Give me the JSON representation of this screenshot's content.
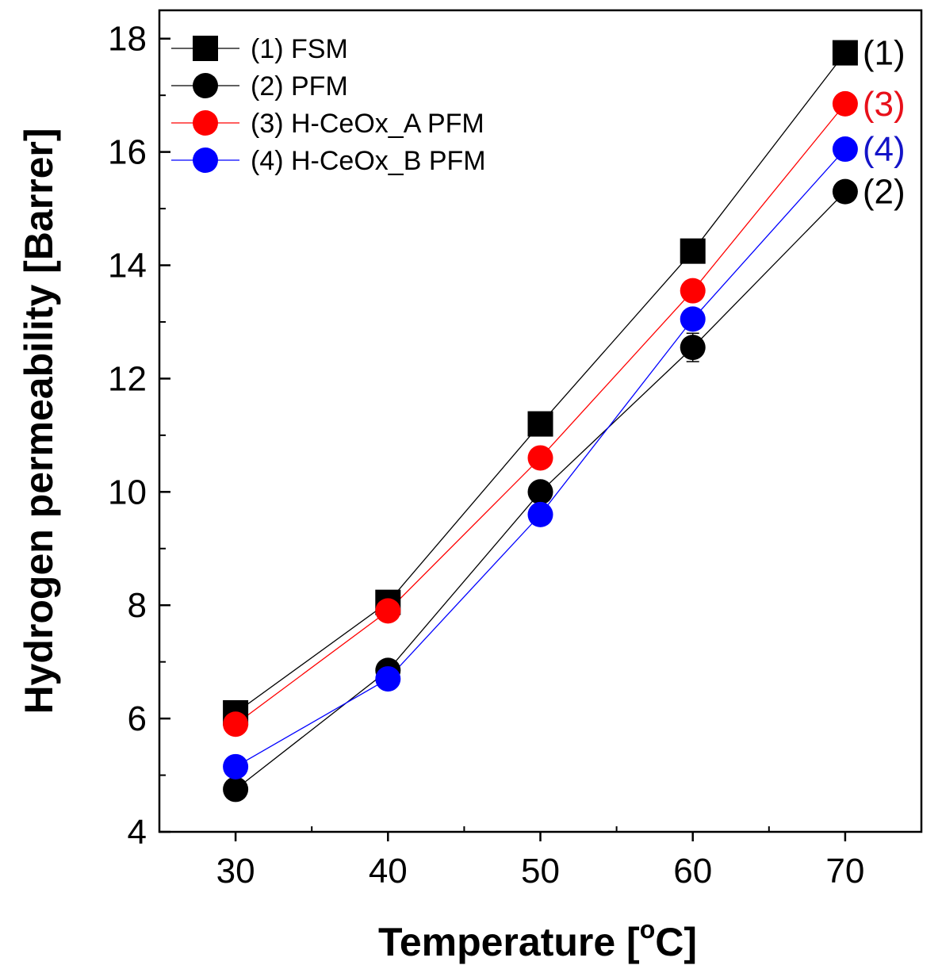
{
  "chart_data": {
    "type": "line",
    "xlabel": "Temperature [",
    "xlabel_sup": "o",
    "xlabel_unit": "C]",
    "ylabel": "Hydrogen permeability [Barrer]",
    "xlim": [
      25,
      75
    ],
    "ylim": [
      4,
      18.5
    ],
    "x": [
      30,
      40,
      50,
      60,
      70
    ],
    "xticks": [
      30,
      40,
      50,
      60,
      70
    ],
    "xtick_labels": [
      "30",
      "40",
      "50",
      "60",
      "70"
    ],
    "yticks": [
      4,
      6,
      8,
      10,
      12,
      14,
      16,
      18
    ],
    "ytick_labels": [
      "4",
      "6",
      "8",
      "10",
      "12",
      "14",
      "16",
      "18"
    ],
    "legend_position": "top-left",
    "grid": false,
    "series": [
      {
        "name": "(1) FSM",
        "end_label": "(1)",
        "marker": "square",
        "color": "#000000",
        "label_color": "#000000",
        "values": [
          6.1,
          8.05,
          11.2,
          14.25,
          17.75
        ],
        "errors": [
          0.05,
          0.05,
          0.05,
          0.05,
          0.05
        ]
      },
      {
        "name": "(2) PFM",
        "end_label": "(2)",
        "marker": "circle",
        "color": "#000000",
        "label_color": "#000000",
        "values": [
          4.75,
          6.85,
          10.0,
          12.55,
          15.3
        ],
        "errors": [
          0.05,
          0.05,
          0.05,
          0.25,
          0.05
        ]
      },
      {
        "name": "(3) H-CeOx_A PFM",
        "end_label": "(3)",
        "marker": "circle",
        "color": "#ff0000",
        "label_color": "#e8101a",
        "values": [
          5.9,
          7.9,
          10.6,
          13.55,
          16.85
        ],
        "errors": [
          0.12,
          0.12,
          0.05,
          0.05,
          0.05
        ]
      },
      {
        "name": "(4) H-CeOx_B PFM",
        "end_label": "(4)",
        "marker": "circle",
        "color": "#0000ff",
        "label_color": "#1414c8",
        "values": [
          5.15,
          6.7,
          9.6,
          13.05,
          16.05
        ],
        "errors": [
          0.05,
          0.05,
          0.05,
          0.05,
          0.05
        ]
      }
    ]
  }
}
